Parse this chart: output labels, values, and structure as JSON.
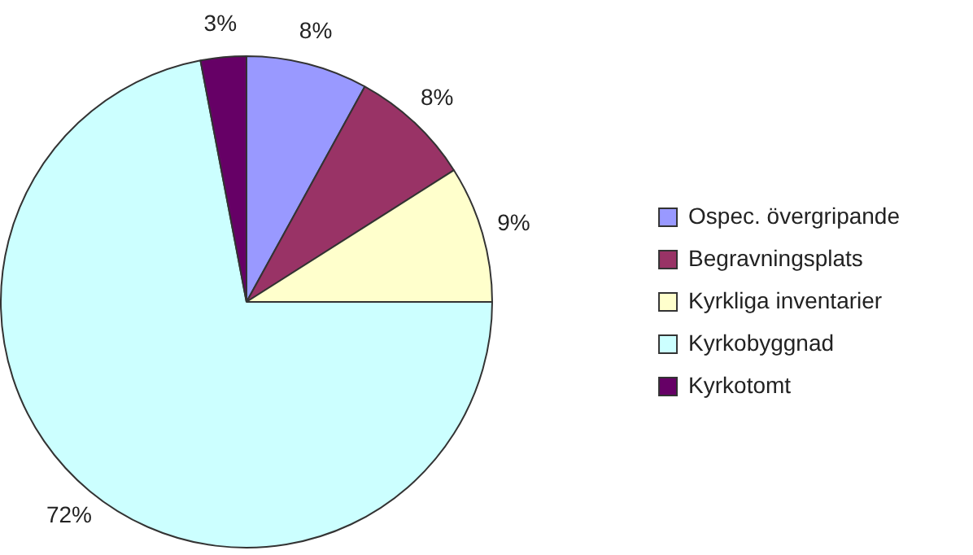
{
  "chart_data": {
    "type": "pie",
    "categories": [
      "Ospec. övergripande",
      "Begravningsplats",
      "Kyrkliga inventarier",
      "Kyrkobyggnad",
      "Kyrkotomt"
    ],
    "values": [
      8,
      8,
      9,
      72,
      3
    ],
    "colors": [
      "#9999ff",
      "#993366",
      "#ffffcc",
      "#ccffff",
      "#660066"
    ],
    "value_labels": [
      "8%",
      "8%",
      "9%",
      "72%",
      "3%"
    ],
    "legend": "right"
  }
}
